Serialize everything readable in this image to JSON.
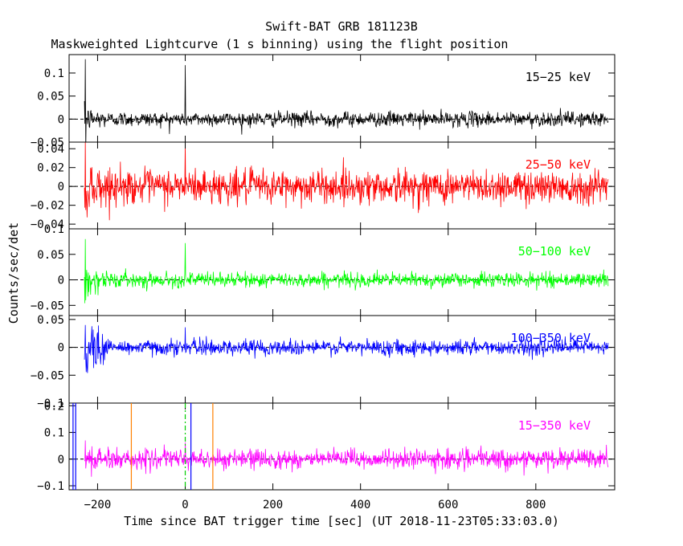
{
  "chart_data": {
    "type": "line",
    "title": "Swift-BAT GRB 181123B",
    "subtitle": "Maskweighted Lightcurve (1 s binning) using the flight position",
    "xlabel": "Time since BAT trigger time [sec] (UT 2018-11-23T05:33:03.0)",
    "ylabel": "Counts/sec/det",
    "xlim": [
      -265,
      980
    ],
    "x_data_range": [
      -230,
      965
    ],
    "xticks": [
      -200,
      0,
      200,
      400,
      600,
      800
    ],
    "xtick_labels": [
      "−200",
      "0",
      "200",
      "400",
      "600",
      "800"
    ],
    "panels": [
      {
        "name": "15−25 keV",
        "color": "#000000",
        "ylim": [
          -0.05,
          0.14
        ],
        "yticks": [
          -0.05,
          0,
          0.05,
          0.1
        ],
        "ytick_labels": [
          "−0.05",
          "0",
          "0.05",
          "0.1"
        ],
        "noise_sigma": 0.008,
        "spike_height": 0.13,
        "early_noise_sigma": 0.014
      },
      {
        "name": "25−50 keV",
        "color": "#ff0000",
        "ylim": [
          -0.045,
          0.047
        ],
        "yticks": [
          -0.04,
          -0.02,
          0,
          0.02,
          0.04
        ],
        "ytick_labels": [
          "−0.04",
          "−0.02",
          "0",
          "0.02",
          "0.04"
        ],
        "noise_sigma": 0.009,
        "spike_height": 0.05,
        "early_noise_sigma": 0.015
      },
      {
        "name": "50−100 keV",
        "color": "#00ff00",
        "ylim": [
          -0.07,
          0.1
        ],
        "yticks": [
          -0.05,
          0,
          0.05,
          0.1
        ],
        "ytick_labels": [
          "−0.05",
          "0",
          "0.05",
          "0.1"
        ],
        "noise_sigma": 0.007,
        "spike_height": 0.08,
        "early_noise_sigma": 0.02
      },
      {
        "name": "100−350 keV",
        "color": "#0000ff",
        "ylim": [
          -0.1,
          0.057
        ],
        "yticks": [
          -0.1,
          -0.05,
          0,
          0.05
        ],
        "ytick_labels": [
          "−0.1",
          "−0.05",
          "0",
          "0.05"
        ],
        "noise_sigma": 0.007,
        "spike_height": 0.04,
        "early_noise_sigma": 0.03
      },
      {
        "name": "15−350 keV",
        "color": "#ff00ff",
        "ylim": [
          -0.115,
          0.21
        ],
        "yticks": [
          -0.1,
          0,
          0.1,
          0.2
        ],
        "ytick_labels": [
          "−0.1",
          "0",
          "0.1",
          "0.2"
        ],
        "noise_sigma": 0.018,
        "spike_height": 0.07,
        "early_noise_sigma": 0.035
      }
    ],
    "markers": [
      {
        "x": -256,
        "color": "#0000ff",
        "style": "solid"
      },
      {
        "x": -250,
        "color": "#0000ff",
        "style": "solid"
      },
      {
        "x": -123,
        "color": "#ff8000",
        "style": "solid"
      },
      {
        "x": 0,
        "color": "#00cc00",
        "style": "dashdot"
      },
      {
        "x": 13,
        "color": "#0000ff",
        "style": "solid"
      },
      {
        "x": 63,
        "color": "#ff8000",
        "style": "solid"
      }
    ],
    "grid": false,
    "zero_line": "dashed"
  }
}
